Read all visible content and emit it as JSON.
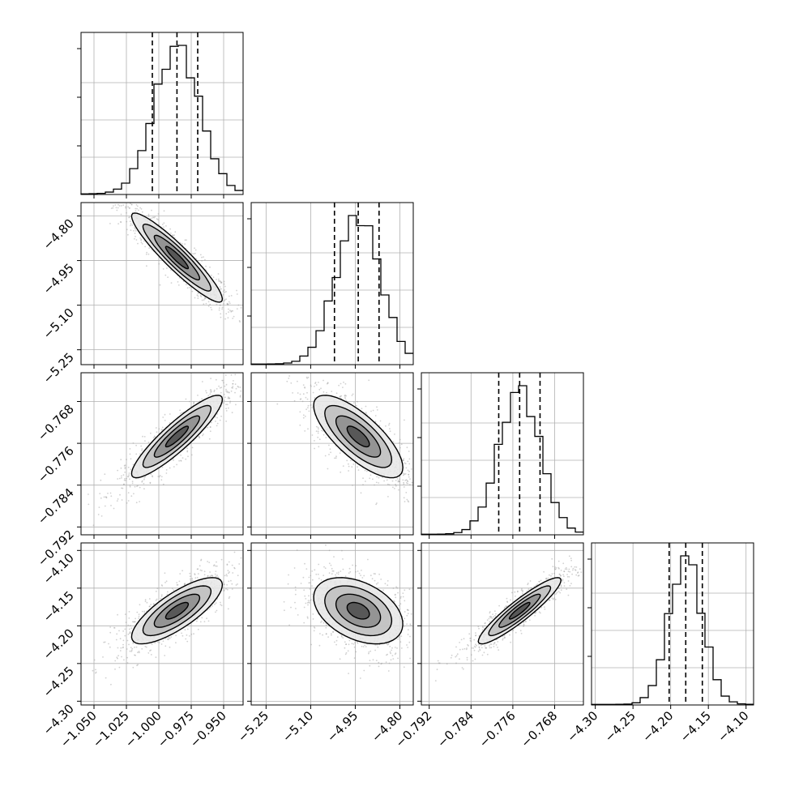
{
  "chart_data": {
    "type": "corner",
    "grid": true,
    "colors": {
      "hist": "#000000",
      "quantile": "#000000",
      "contour": "#000000",
      "scatter": "#9a9a9a",
      "grid": "#b0b0b0"
    },
    "params": [
      {
        "range": [
          -1.06,
          -0.935
        ],
        "median": -0.986,
        "q16": -1.005,
        "q84": -0.97,
        "ticks": [
          -1.05,
          -1.025,
          -1.0,
          -0.975,
          -0.95
        ],
        "tick_labels": [
          "−1.050",
          "−1.025",
          "−1.000",
          "−0.975",
          "−0.950"
        ]
      },
      {
        "range": [
          -5.3,
          -4.755
        ],
        "median": -4.94,
        "q16": -5.02,
        "q84": -4.87,
        "ticks": [
          -5.25,
          -5.1,
          -4.95,
          -4.8
        ],
        "tick_labels": [
          "−5.25",
          "−5.10",
          "−4.95",
          "−4.80"
        ]
      },
      {
        "range": [
          -0.7935,
          -0.7625
        ],
        "median": -0.7747,
        "q16": -0.7787,
        "q84": -0.7708,
        "ticks": [
          -0.792,
          -0.784,
          -0.776,
          -0.768
        ],
        "tick_labels": [
          "−0.792",
          "−0.784",
          "−0.776",
          "−0.768"
        ]
      },
      {
        "range": [
          -4.305,
          -4.09
        ],
        "median": -4.18,
        "q16": -4.202,
        "q84": -4.158,
        "ticks": [
          -4.3,
          -4.25,
          -4.2,
          -4.15,
          -4.1
        ],
        "tick_labels": [
          "−4.30",
          "−4.25",
          "−4.20",
          "−4.15",
          "−4.10"
        ]
      }
    ],
    "correlations": [
      {
        "pair": [
          0,
          1
        ],
        "rho": -0.93
      },
      {
        "pair": [
          0,
          2
        ],
        "rho": 0.9
      },
      {
        "pair": [
          1,
          2
        ],
        "rho": -0.75
      },
      {
        "pair": [
          0,
          3
        ],
        "rho": 0.78
      },
      {
        "pair": [
          1,
          3
        ],
        "rho": -0.4
      },
      {
        "pair": [
          2,
          3
        ],
        "rho": 0.92
      }
    ],
    "contour_levels": [
      0.5,
      1.0,
      1.5,
      2.0
    ],
    "scatter_points_per_panel": 900
  }
}
